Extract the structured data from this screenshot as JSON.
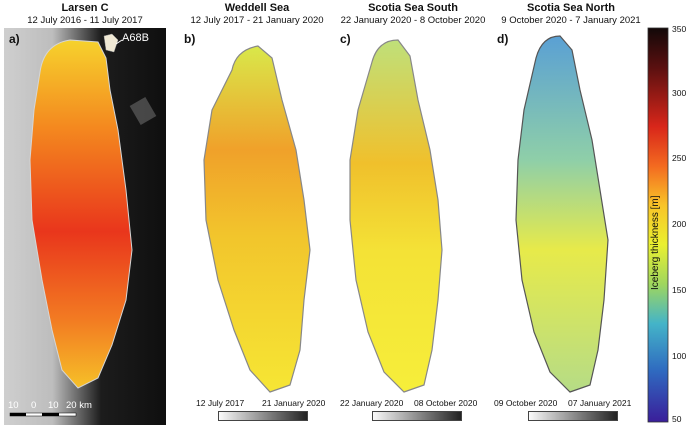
{
  "panels": [
    {
      "letter": "a)",
      "title": "Larsen C",
      "subtitle": "12 July 2016 - 11 July 2017"
    },
    {
      "letter": "b)",
      "title": "Weddell Sea",
      "subtitle": "12 July 2017 - 21 January 2020"
    },
    {
      "letter": "c)",
      "title": "Scotia Sea South",
      "subtitle": "22 January 2020 - 8 October 2020"
    },
    {
      "letter": "d)",
      "title": "Scotia Sea North",
      "subtitle": "9 October 2020 - 7 January 2021"
    }
  ],
  "annotation_a68b": "A68B",
  "scalebar": {
    "labels": [
      "10",
      "0",
      "10",
      "20 km"
    ]
  },
  "timebars": [
    {
      "start": "12 July 2017",
      "end": "21 January 2020"
    },
    {
      "start": "22 January 2020",
      "end": "08 October 2020"
    },
    {
      "start": "09 October 2020",
      "end": "07 January 2021"
    }
  ],
  "colorbar": {
    "label": "Iceberg thickness [m]",
    "ticks": [
      "350",
      "300",
      "250",
      "200",
      "150",
      "100",
      "50"
    ],
    "colors": [
      "#1b0d0d",
      "#7a1a10",
      "#d8261a",
      "#f36a20",
      "#f9c428",
      "#f2f232",
      "#a8d95a",
      "#46b8c8",
      "#2f6fc2",
      "#3a1e9a"
    ]
  }
}
